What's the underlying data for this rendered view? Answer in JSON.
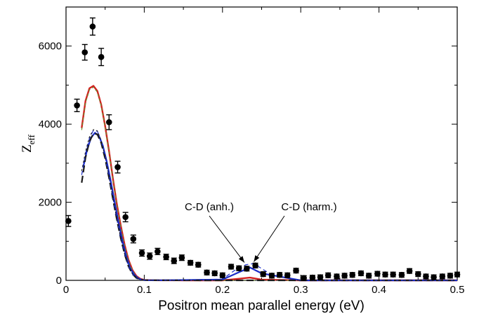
{
  "chart_data": {
    "type": "scatter",
    "xlabel": "Positron mean parallel energy (eV)",
    "ylabel": {
      "main": "Z",
      "sub": "eff"
    },
    "xlim": [
      0,
      0.5
    ],
    "ylim": [
      0,
      7000
    ],
    "x_ticks": [
      "0",
      "0.1",
      "0.2",
      "0.3",
      "0.4",
      "0.5"
    ],
    "y_ticks": [
      "0",
      "2000",
      "4000",
      "6000"
    ],
    "grid": false,
    "annotations": [
      {
        "text": "C-D (anh.)",
        "target": [
          0.228,
          420
        ]
      },
      {
        "text": "C-D (harm.)",
        "target": [
          0.24,
          440
        ]
      }
    ],
    "series": [
      {
        "kind": "points",
        "color": "#000000",
        "x": [
          0.003,
          0.014,
          0.024,
          0.034,
          0.045,
          0.055,
          0.066,
          0.076,
          0.086,
          0.097,
          0.107,
          0.117,
          0.128,
          0.138,
          0.148,
          0.159,
          0.169,
          0.18,
          0.19,
          0.2,
          0.211,
          0.221,
          0.231,
          0.242,
          0.252,
          0.263,
          0.273,
          0.283,
          0.294,
          0.304,
          0.315,
          0.325,
          0.335,
          0.346,
          0.356,
          0.366,
          0.377,
          0.387,
          0.398,
          0.408,
          0.418,
          0.429,
          0.439,
          0.45,
          0.46,
          0.47,
          0.481,
          0.491,
          0.5
        ],
        "y": [
          1520,
          4480,
          5840,
          6500,
          5720,
          4050,
          2900,
          1620,
          1060,
          700,
          620,
          740,
          600,
          500,
          580,
          450,
          400,
          200,
          180,
          130,
          350,
          310,
          300,
          380,
          160,
          120,
          140,
          130,
          250,
          60,
          70,
          80,
          130,
          100,
          120,
          140,
          180,
          120,
          170,
          150,
          150,
          140,
          240,
          160,
          100,
          80,
          100,
          120,
          150
        ],
        "yerr": [
          140,
          160,
          200,
          220,
          220,
          190,
          150,
          120,
          100,
          80,
          80,
          80,
          70,
          70,
          70,
          60,
          60,
          60,
          60,
          60,
          60,
          60,
          60,
          60,
          60,
          60,
          60,
          60,
          60,
          60,
          60,
          60,
          60,
          60,
          60,
          60,
          60,
          60,
          60,
          60,
          60,
          60,
          60,
          60,
          60,
          60,
          60,
          60,
          60
        ]
      },
      {
        "kind": "line",
        "color": "#d42020",
        "width": 2.4,
        "dash": "",
        "x": [
          0.02,
          0.025,
          0.03,
          0.035,
          0.04,
          0.045,
          0.05,
          0.055,
          0.06,
          0.065,
          0.07,
          0.075,
          0.08,
          0.085,
          0.09,
          0.095,
          0.1,
          0.11,
          0.12,
          0.15,
          0.2,
          0.22,
          0.235,
          0.25,
          0.3,
          0.4,
          0.5
        ],
        "y": [
          3900,
          4600,
          4920,
          4980,
          4850,
          4500,
          3950,
          3300,
          2600,
          1950,
          1400,
          900,
          520,
          260,
          110,
          40,
          10,
          3,
          1,
          0,
          0,
          40,
          70,
          20,
          0,
          0,
          0
        ]
      },
      {
        "kind": "line",
        "color": "#6f8f2f",
        "width": 1.2,
        "dash": "4 3",
        "x": [
          0.02,
          0.025,
          0.03,
          0.035,
          0.04,
          0.045,
          0.05,
          0.055,
          0.06,
          0.065,
          0.07,
          0.075,
          0.08,
          0.085,
          0.09,
          0.095,
          0.1,
          0.12,
          0.2,
          0.5
        ],
        "y": [
          3850,
          4550,
          4880,
          4950,
          4820,
          4470,
          3920,
          3280,
          2580,
          1930,
          1380,
          880,
          500,
          250,
          100,
          35,
          8,
          1,
          0,
          0
        ]
      },
      {
        "kind": "line",
        "color": "#1a2cc8",
        "width": 2.2,
        "dash": "",
        "x": [
          0.022,
          0.027,
          0.032,
          0.037,
          0.042,
          0.047,
          0.052,
          0.057,
          0.062,
          0.067,
          0.072,
          0.077,
          0.082,
          0.087,
          0.092,
          0.097,
          0.102,
          0.12,
          0.2,
          0.22,
          0.235,
          0.25,
          0.3,
          0.5
        ],
        "y": [
          2900,
          3350,
          3650,
          3780,
          3700,
          3450,
          3050,
          2560,
          2020,
          1500,
          1020,
          620,
          320,
          150,
          55,
          15,
          4,
          1,
          20,
          200,
          330,
          180,
          0,
          0
        ]
      },
      {
        "kind": "line",
        "color": "#1a1a1a",
        "width": 2.2,
        "dash": "10 5",
        "x": [
          0.02,
          0.025,
          0.03,
          0.035,
          0.04,
          0.045,
          0.05,
          0.055,
          0.06,
          0.065,
          0.07,
          0.075,
          0.08,
          0.085,
          0.09,
          0.095,
          0.1,
          0.12,
          0.2,
          0.5
        ],
        "y": [
          2500,
          3150,
          3560,
          3760,
          3740,
          3520,
          3120,
          2620,
          2080,
          1550,
          1070,
          660,
          350,
          160,
          60,
          18,
          5,
          1,
          0,
          0
        ]
      },
      {
        "kind": "line",
        "color": "#1a2cc8",
        "width": 1.2,
        "dash": "6 4",
        "x": [
          0.02,
          0.025,
          0.03,
          0.035,
          0.04,
          0.045,
          0.05,
          0.055,
          0.06,
          0.065,
          0.07,
          0.075,
          0.08,
          0.085,
          0.09,
          0.095,
          0.1,
          0.12,
          0.2,
          0.215,
          0.23,
          0.24,
          0.25,
          0.265,
          0.3,
          0.5
        ],
        "y": [
          2700,
          3250,
          3640,
          3840,
          3820,
          3580,
          3160,
          2650,
          2100,
          1560,
          1070,
          660,
          350,
          160,
          60,
          18,
          5,
          1,
          30,
          250,
          400,
          430,
          300,
          120,
          0,
          0
        ]
      },
      {
        "kind": "line",
        "color": "#1a1a1a",
        "width": 1.0,
        "dash": "3 3",
        "x": [
          0.02,
          0.025,
          0.03,
          0.035,
          0.04,
          0.045,
          0.05,
          0.055,
          0.06,
          0.065,
          0.07,
          0.075,
          0.08,
          0.085,
          0.09,
          0.095,
          0.1,
          0.12,
          0.2,
          0.5
        ],
        "y": [
          2800,
          3300,
          3680,
          3860,
          3830,
          3590,
          3170,
          2660,
          2110,
          1570,
          1080,
          670,
          360,
          165,
          62,
          18,
          5,
          1,
          0,
          0
        ]
      }
    ]
  }
}
